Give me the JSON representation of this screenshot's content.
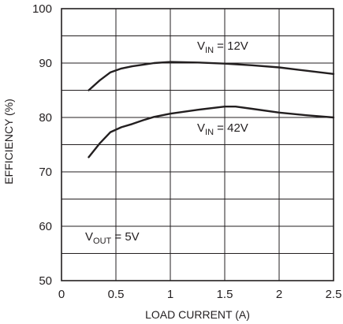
{
  "chart_data": {
    "type": "line",
    "xlabel": "LOAD CURRENT (A)",
    "ylabel": "EFFICIENCY (%)",
    "xlim": [
      0,
      2.5
    ],
    "ylim": [
      50,
      100
    ],
    "xticks": [
      0,
      0.5,
      1,
      1.5,
      2,
      2.5
    ],
    "xtick_labels": [
      "0",
      "0.5",
      "1",
      "1.5",
      "2",
      "2.5"
    ],
    "yticks": [
      50,
      60,
      70,
      80,
      90,
      100
    ],
    "ytick_labels": [
      "50",
      "60",
      "70",
      "80",
      "90",
      "100"
    ],
    "grid": true,
    "series": [
      {
        "name": "V_IN = 12V",
        "x": [
          0.25,
          0.35,
          0.45,
          0.55,
          0.65,
          0.75,
          0.85,
          1.0,
          1.25,
          1.5,
          1.75,
          2.0,
          2.25,
          2.5
        ],
        "y": [
          85.0,
          86.8,
          88.3,
          89.0,
          89.4,
          89.7,
          90.0,
          90.2,
          90.1,
          89.9,
          89.6,
          89.2,
          88.6,
          88.0
        ]
      },
      {
        "name": "V_IN = 42V",
        "x": [
          0.25,
          0.35,
          0.45,
          0.55,
          0.65,
          0.75,
          0.85,
          1.0,
          1.25,
          1.5,
          1.6,
          1.75,
          2.0,
          2.25,
          2.5
        ],
        "y": [
          72.7,
          75.2,
          77.3,
          78.2,
          78.8,
          79.5,
          80.1,
          80.7,
          81.4,
          82.0,
          82.0,
          81.6,
          80.9,
          80.4,
          80.0
        ]
      }
    ],
    "annotations": [
      {
        "main": "V",
        "sub": "IN",
        "rest": " = 12V"
      },
      {
        "main": "V",
        "sub": "IN",
        "rest": " = 42V"
      },
      {
        "main": "V",
        "sub": "OUT",
        "rest": " = 5V"
      }
    ]
  }
}
